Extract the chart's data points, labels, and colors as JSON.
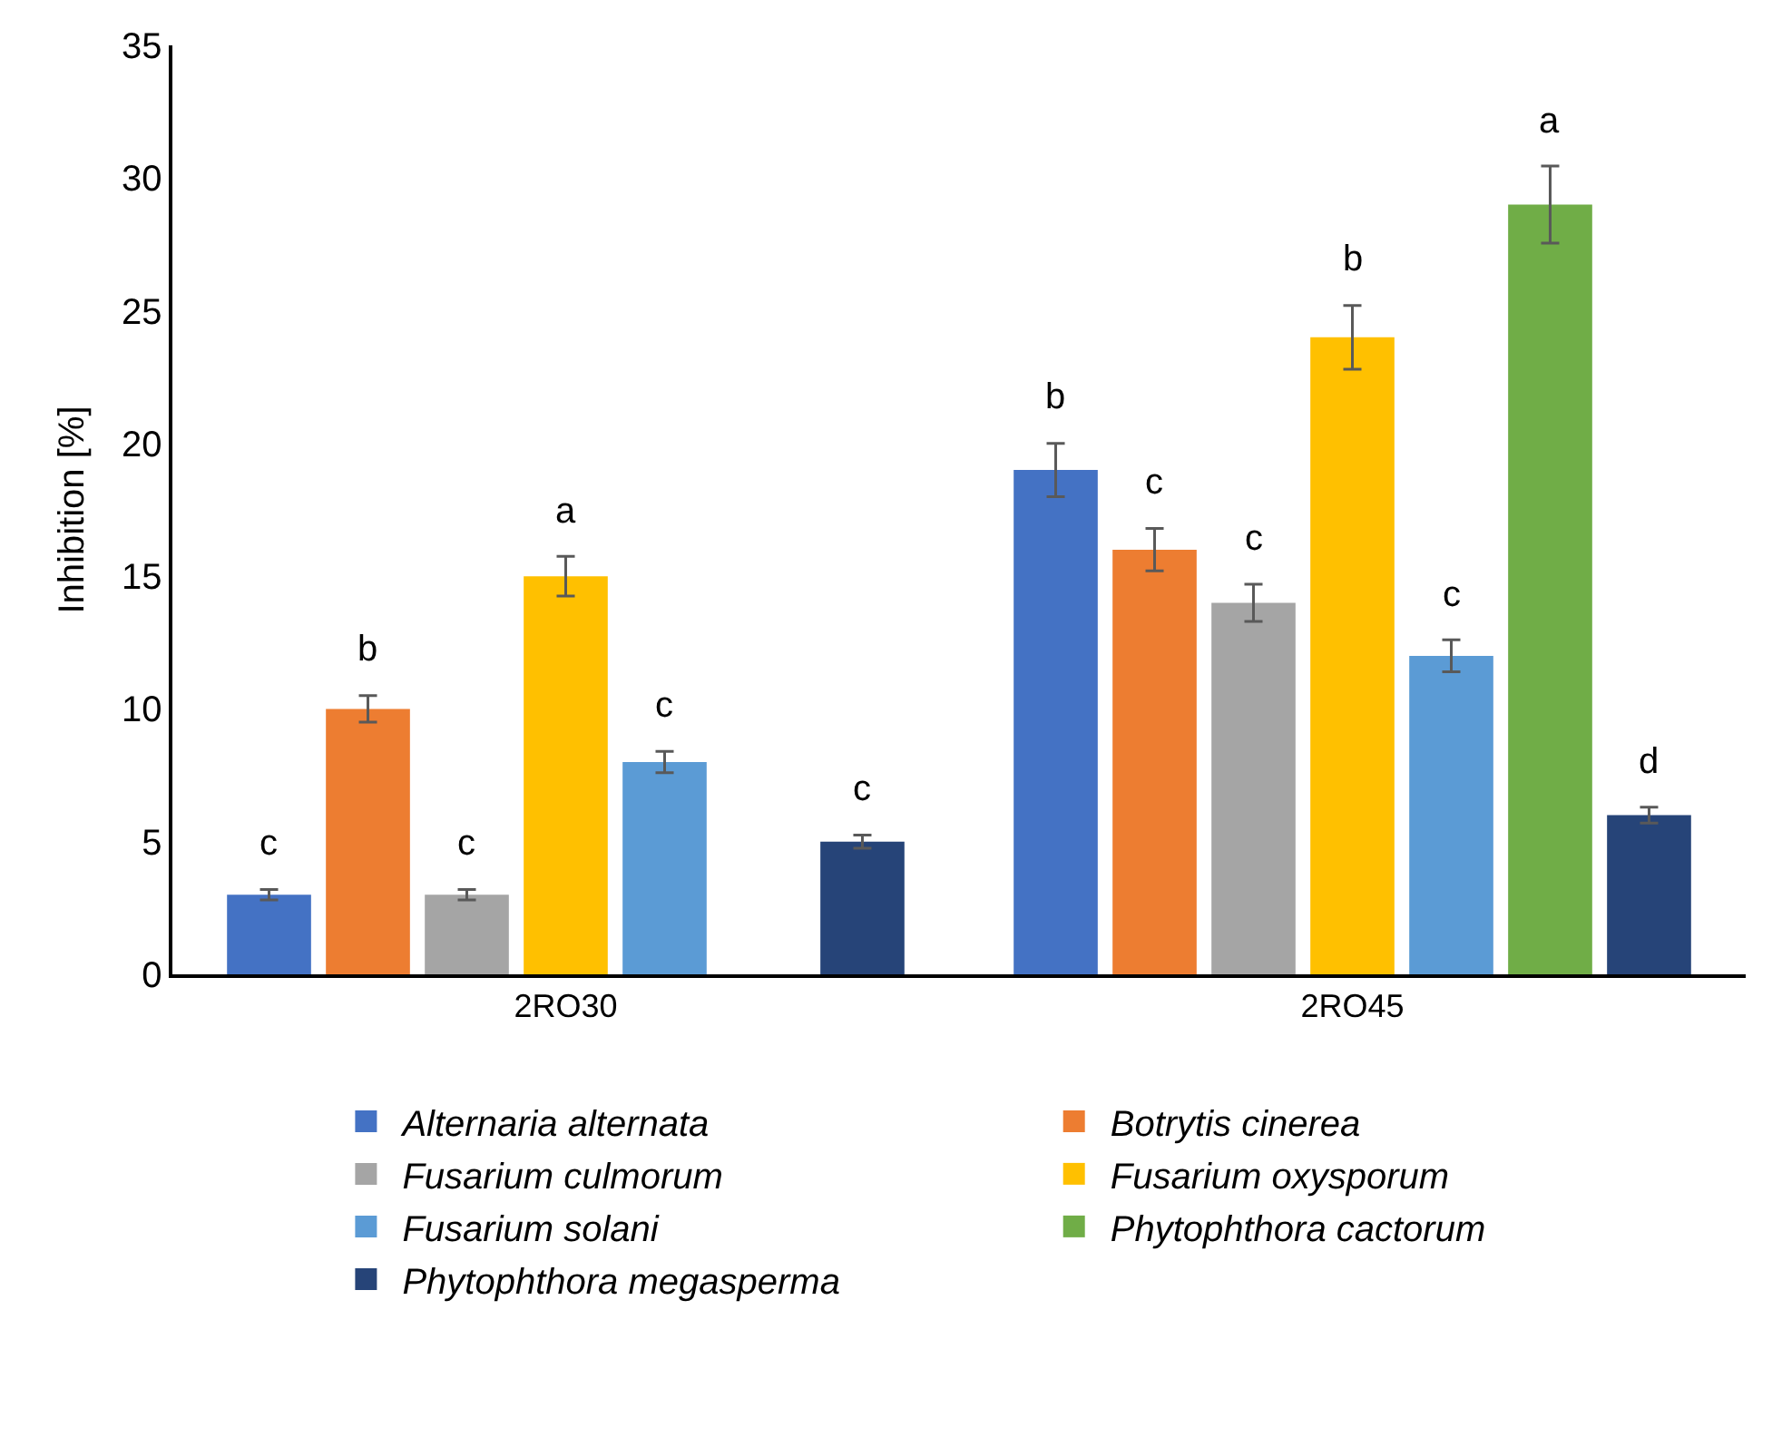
{
  "chart_data": {
    "type": "bar",
    "ylabel": "Inhibition [%]",
    "categories": [
      "2RO30",
      "2RO45"
    ],
    "ylim": [
      0,
      35
    ],
    "yticks": [
      0,
      5,
      10,
      15,
      20,
      25,
      30,
      35
    ],
    "legend": "bottom",
    "series": [
      {
        "name": "Alternaria alternata",
        "color": "#4472c4",
        "values": [
          3,
          19
        ],
        "errors": [
          0.2,
          1
        ],
        "value_labels": [
          "c",
          "b"
        ]
      },
      {
        "name": "Botrytis cinerea",
        "color": "#ed7d31",
        "values": [
          10,
          16
        ],
        "errors": [
          0.5,
          0.8
        ],
        "value_labels": [
          "b",
          "c"
        ]
      },
      {
        "name": "Fusarium culmorum",
        "color": "#a5a5a5",
        "values": [
          3,
          14
        ],
        "errors": [
          0.2,
          0.7
        ],
        "value_labels": [
          "c",
          "c"
        ]
      },
      {
        "name": "Fusarium oxysporum",
        "color": "#ffc000",
        "values": [
          15,
          24
        ],
        "errors": [
          0.75,
          1.2
        ],
        "value_labels": [
          "a",
          "b"
        ]
      },
      {
        "name": "Fusarium solani",
        "color": "#5b9bd5",
        "values": [
          8,
          12
        ],
        "errors": [
          0.4,
          0.6
        ],
        "value_labels": [
          "c",
          "c"
        ]
      },
      {
        "name": "Phytophthora cactorum",
        "color": "#70ad47",
        "values": [
          null,
          29
        ],
        "errors": [
          null,
          1.45
        ],
        "value_labels": [
          null,
          "a"
        ]
      },
      {
        "name": "Phytophthora megasperma",
        "color": "#264478",
        "values": [
          5,
          6
        ],
        "errors": [
          0.25,
          0.3
        ],
        "value_labels": [
          "c",
          "d"
        ]
      }
    ]
  }
}
